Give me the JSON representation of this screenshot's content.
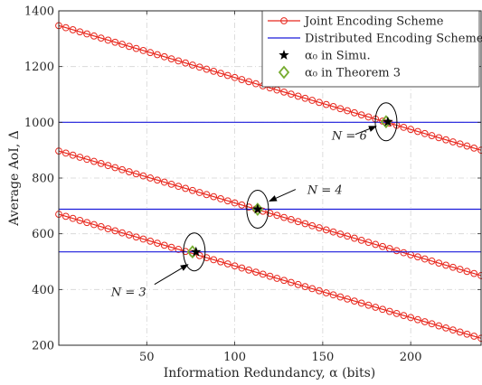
{
  "chart_data": {
    "type": "line",
    "xlabel": "Information Redundancy, α (bits)",
    "ylabel": "Average AoI, Δ",
    "xlim": [
      0,
      240
    ],
    "ylim": [
      200,
      1400
    ],
    "xticks": [
      50,
      100,
      150,
      200
    ],
    "yticks": [
      200,
      400,
      600,
      800,
      1000,
      1200,
      1400
    ],
    "grid": true,
    "legend_position": "top-right",
    "legend": [
      {
        "label": "Joint Encoding Scheme",
        "marker": "circle-line",
        "color": "#e8281e"
      },
      {
        "label": "Distributed Encoding Scheme",
        "marker": "line",
        "color": "#1a1adb"
      },
      {
        "label": "α₀ in Simu.",
        "marker": "star",
        "color": "#000000"
      },
      {
        "label": "α₀ in Theorem 3",
        "marker": "diamond",
        "color": "#77ac30"
      }
    ],
    "series": [
      {
        "name": "Joint Encoding Scheme",
        "group": "N = 6",
        "x_range": [
          0,
          240
        ],
        "y_start": 1347,
        "y_end": 900,
        "color": "#e8281e"
      },
      {
        "name": "Joint Encoding Scheme",
        "group": "N = 4",
        "x_range": [
          0,
          240
        ],
        "y_start": 897,
        "y_end": 450,
        "color": "#e8281e"
      },
      {
        "name": "Joint Encoding Scheme",
        "group": "N = 3",
        "x_range": [
          0,
          240
        ],
        "y_start": 670,
        "y_end": 225,
        "color": "#e8281e"
      },
      {
        "name": "Distributed Encoding Scheme",
        "group": "N = 6",
        "x_range": [
          0,
          240
        ],
        "y_value": 1000,
        "color": "#1a1adb"
      },
      {
        "name": "Distributed Encoding Scheme",
        "group": "N = 4",
        "x_range": [
          0,
          240
        ],
        "y_value": 688,
        "color": "#1a1adb"
      },
      {
        "name": "Distributed Encoding Scheme",
        "group": "N = 3",
        "x_range": [
          0,
          240
        ],
        "y_value": 535,
        "color": "#1a1adb"
      }
    ],
    "alpha0_simu": [
      {
        "x": 187,
        "y": 1002
      },
      {
        "x": 113,
        "y": 688
      },
      {
        "x": 78,
        "y": 535
      }
    ],
    "alpha0_theorem": [
      {
        "x": 186,
        "y": 1002
      },
      {
        "x": 113,
        "y": 688
      },
      {
        "x": 76,
        "y": 535
      }
    ],
    "annotations": [
      {
        "text": "N = 6",
        "target": [
          186,
          1002
        ]
      },
      {
        "text": "N = 4",
        "target": [
          113,
          688
        ]
      },
      {
        "text": "N = 3",
        "target": [
          77,
          535
        ]
      }
    ]
  }
}
